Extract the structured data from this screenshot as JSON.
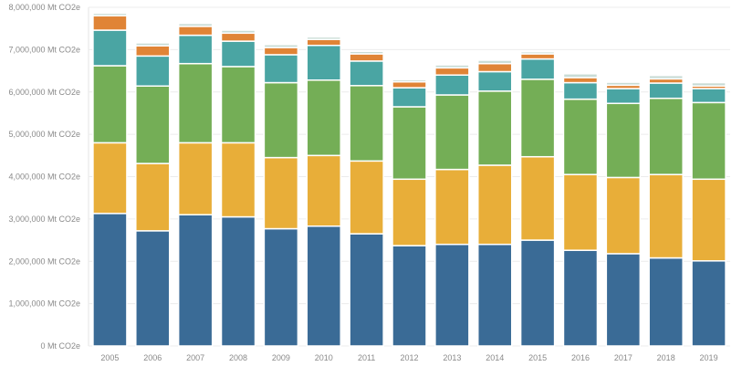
{
  "chart_data": {
    "type": "bar",
    "stacked": true,
    "title": "",
    "xlabel": "",
    "ylabel": "",
    "unit_suffix": " Mt CO2e",
    "ylim": [
      0,
      8000000
    ],
    "yticks": [
      0,
      1000000,
      2000000,
      3000000,
      4000000,
      5000000,
      6000000,
      7000000,
      8000000
    ],
    "ytick_labels": [
      "0 Mt CO2e",
      "1,000,000 Mt CO2e",
      "2,000,000 Mt CO2e",
      "3,000,000 Mt CO2e",
      "4,000,000 Mt CO2e",
      "5,000,000 Mt CO2e",
      "6,000,000 Mt CO2e",
      "7,000,000 Mt CO2e",
      "8,000,000 Mt CO2e"
    ],
    "grid": true,
    "categories": [
      "2005",
      "2006",
      "2007",
      "2008",
      "2009",
      "2010",
      "2011",
      "2012",
      "2013",
      "2014",
      "2015",
      "2016",
      "2017",
      "2018",
      "2019"
    ],
    "series": [
      {
        "color": "#3a6b96",
        "values": [
          3130000,
          2720000,
          3100000,
          3050000,
          2770000,
          2830000,
          2650000,
          2370000,
          2400000,
          2400000,
          2500000,
          2260000,
          2180000,
          2080000,
          2010000
        ]
      },
      {
        "color": "#e8ae39",
        "values": [
          1670000,
          1590000,
          1700000,
          1750000,
          1680000,
          1670000,
          1720000,
          1570000,
          1770000,
          1870000,
          1970000,
          1790000,
          1800000,
          1970000,
          1930000
        ]
      },
      {
        "color": "#74ae56",
        "values": [
          1820000,
          1830000,
          1870000,
          1800000,
          1770000,
          1780000,
          1780000,
          1710000,
          1760000,
          1750000,
          1830000,
          1780000,
          1750000,
          1800000,
          1810000
        ]
      },
      {
        "color": "#4aa5a3",
        "values": [
          840000,
          710000,
          670000,
          600000,
          660000,
          820000,
          580000,
          450000,
          470000,
          460000,
          480000,
          390000,
          350000,
          360000,
          330000
        ]
      },
      {
        "color": "#e08436",
        "values": [
          340000,
          240000,
          210000,
          190000,
          170000,
          140000,
          170000,
          140000,
          170000,
          190000,
          120000,
          120000,
          80000,
          100000,
          60000
        ]
      },
      {
        "color": "#c9dcd6",
        "values": [
          60000,
          70000,
          70000,
          70000,
          70000,
          60000,
          60000,
          50000,
          70000,
          80000,
          50000,
          90000,
          70000,
          80000,
          80000
        ]
      }
    ]
  }
}
